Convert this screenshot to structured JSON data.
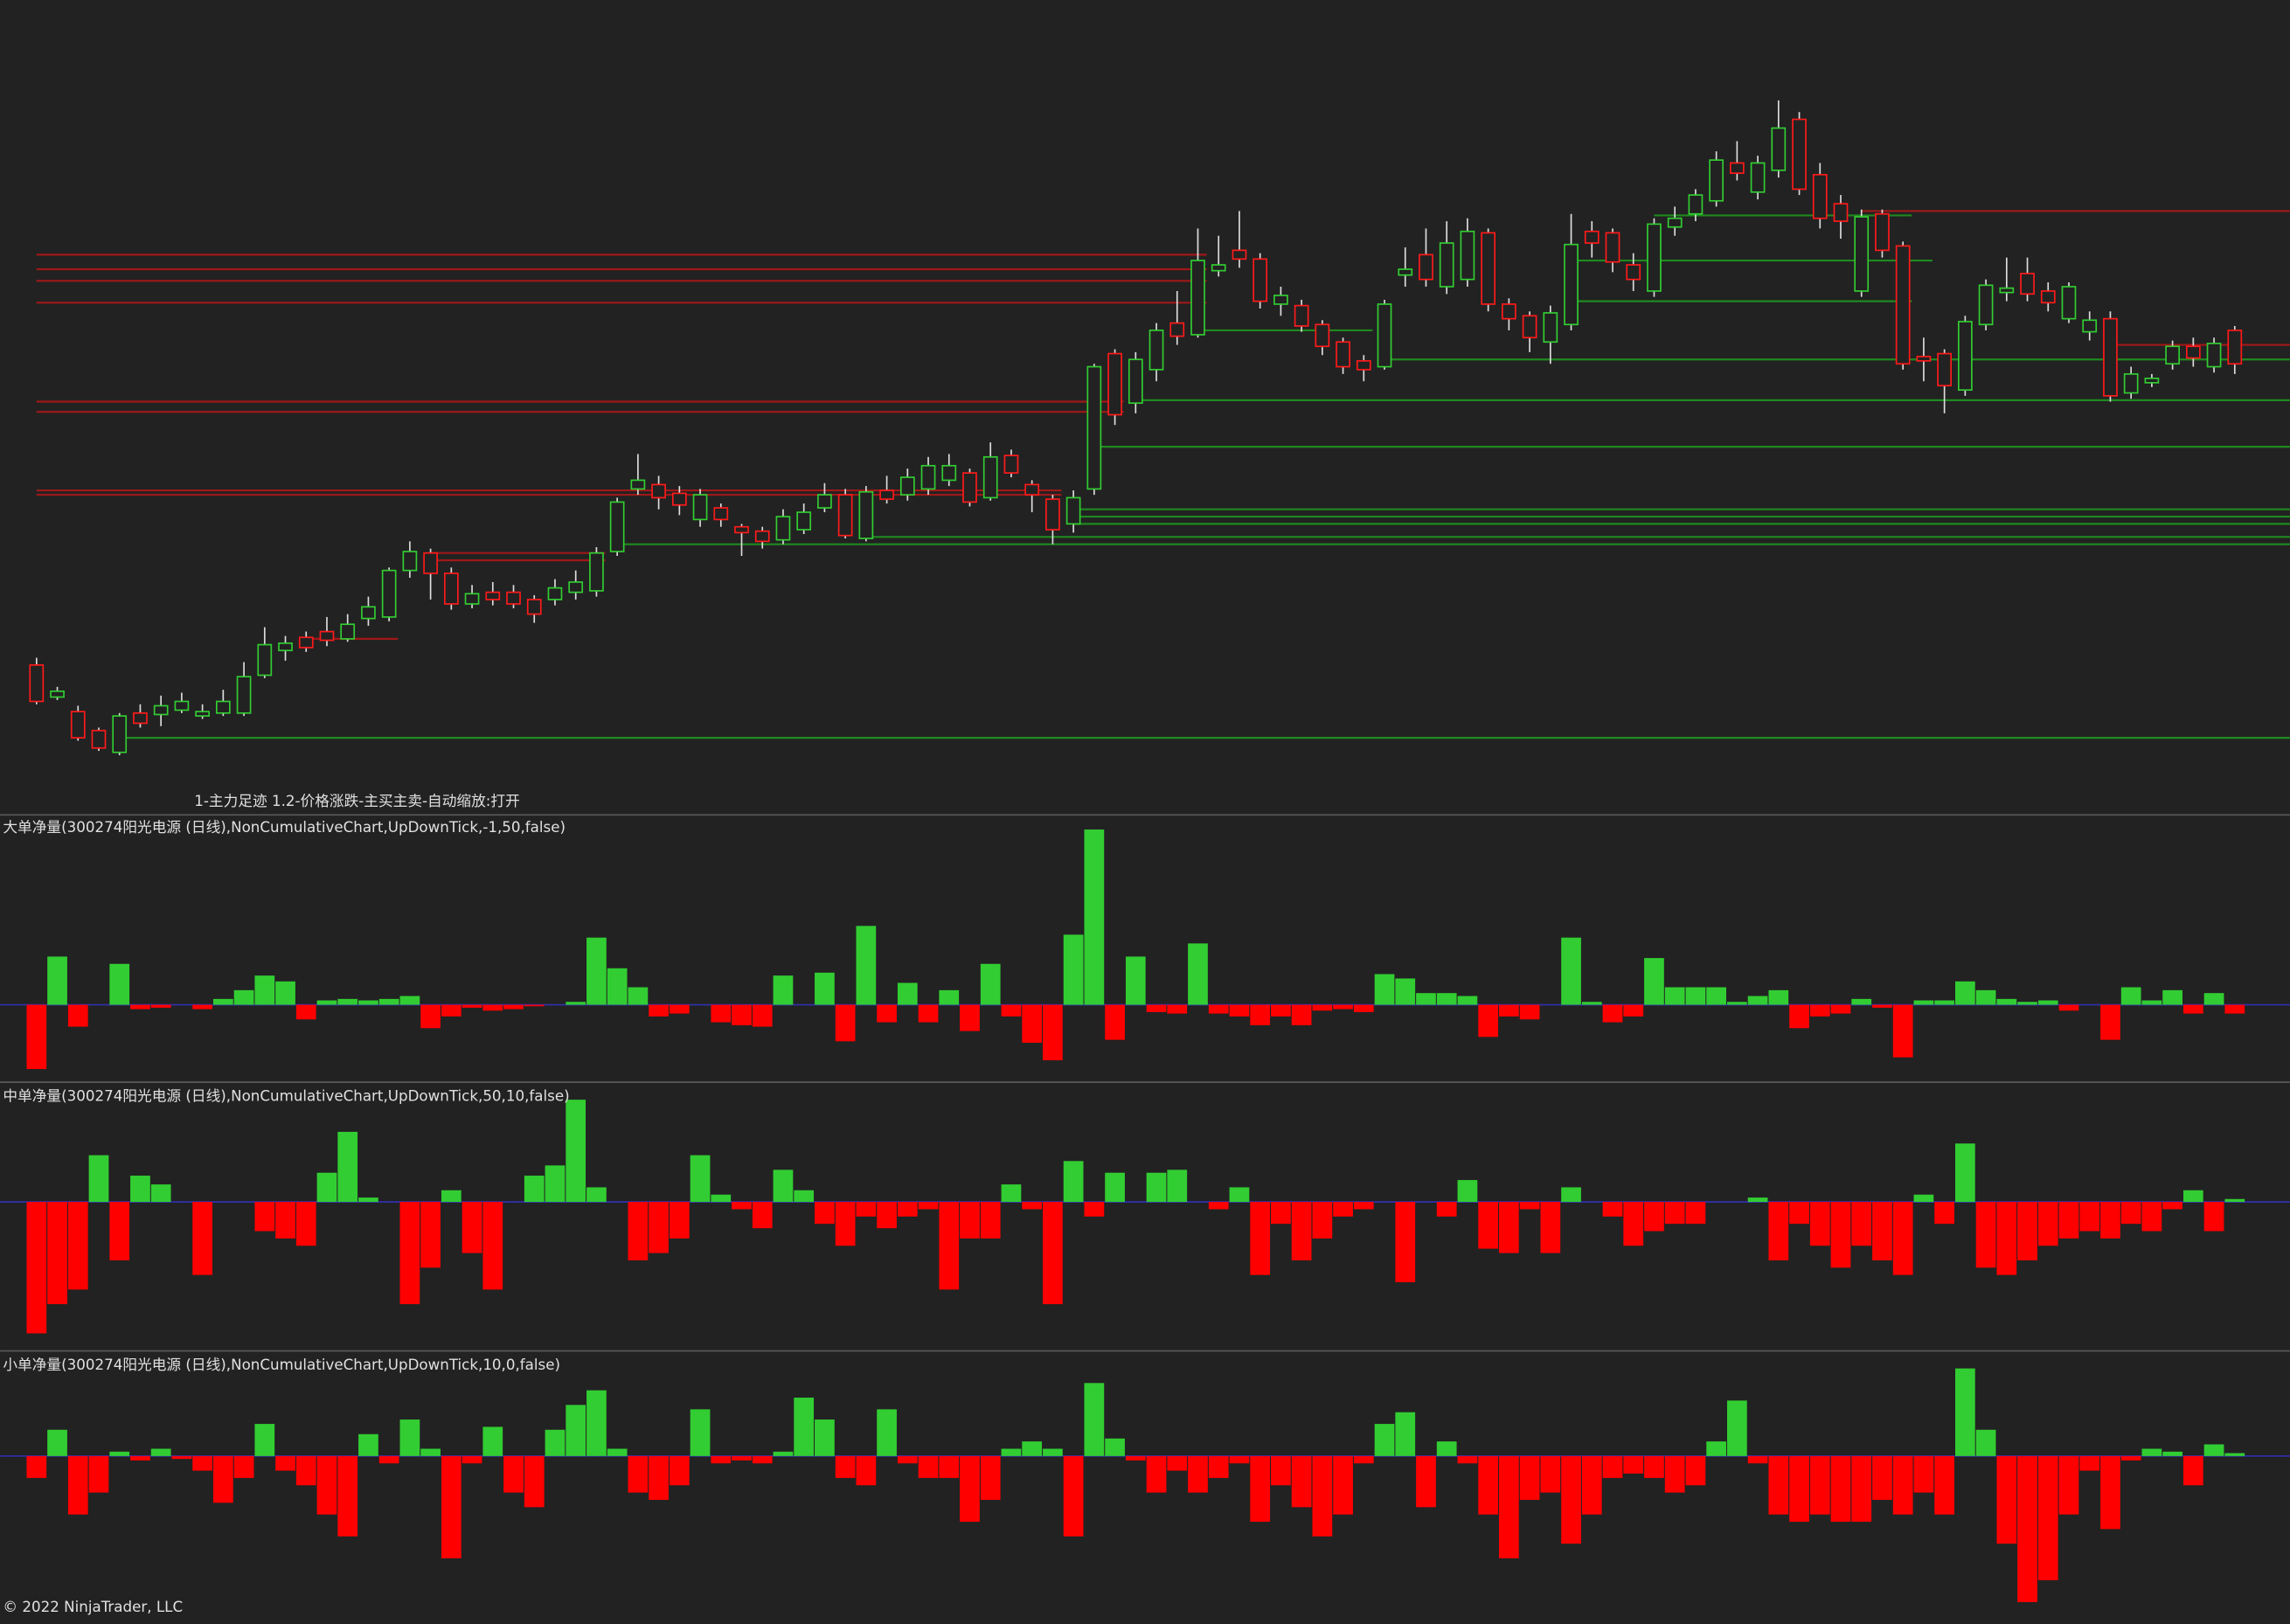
{
  "chart_data": [
    {
      "type": "candlestick",
      "title": "1-主力足迹 1.2-价格涨跌-主买主卖-自动缩放:打开",
      "up_color": "#32cd32",
      "down_color": "#ff1a1a",
      "wick_color": "#dddddd",
      "ylim": [
        2,
        560
      ],
      "open": [
        105,
        83,
        73,
        60,
        45,
        72,
        71,
        74,
        70,
        72,
        72,
        98,
        115,
        124,
        128,
        123,
        137,
        138,
        170,
        182,
        168,
        147,
        155,
        155,
        150,
        150,
        155,
        156,
        183,
        226,
        229,
        223,
        205,
        213,
        200,
        197,
        191,
        198,
        213,
        222,
        192,
        225,
        222,
        226,
        232,
        237,
        220,
        249,
        229,
        219,
        202,
        226,
        319,
        285,
        308,
        340,
        332,
        376,
        390,
        384,
        353,
        352,
        339,
        327,
        314,
        310,
        373,
        387,
        365,
        370,
        402,
        353,
        345,
        327,
        339,
        403,
        402,
        380,
        362,
        406,
        415,
        424,
        450,
        430,
        445,
        480,
        442,
        422,
        362,
        415,
        393,
        317,
        319,
        294,
        339,
        361,
        374,
        362,
        343,
        334,
        343,
        292,
        299,
        312,
        324,
        310,
        335
      ],
      "high": [
        110,
        90,
        77,
        62,
        72,
        78,
        84,
        86,
        78,
        88,
        107,
        131,
        125,
        128,
        138,
        140,
        152,
        172,
        190,
        185,
        172,
        160,
        162,
        160,
        153,
        164,
        170,
        186,
        220,
        250,
        235,
        228,
        226,
        216,
        202,
        200,
        212,
        216,
        230,
        226,
        228,
        235,
        240,
        248,
        250,
        240,
        258,
        253,
        232,
        222,
        225,
        312,
        322,
        320,
        340,
        362,
        405,
        400,
        417,
        388,
        365,
        356,
        342,
        330,
        318,
        356,
        392,
        405,
        410,
        412,
        405,
        357,
        348,
        352,
        415,
        410,
        405,
        388,
        412,
        420,
        432,
        458,
        465,
        455,
        493,
        485,
        450,
        428,
        418,
        418,
        396,
        330,
        322,
        345,
        370,
        385,
        385,
        368,
        368,
        348,
        348,
        310,
        305,
        328,
        330,
        330,
        338
      ],
      "low": [
        78,
        81,
        53,
        46,
        43,
        62,
        63,
        72,
        68,
        70,
        70,
        96,
        108,
        114,
        118,
        121,
        132,
        135,
        165,
        150,
        143,
        144,
        146,
        144,
        134,
        146,
        150,
        152,
        180,
        222,
        212,
        208,
        200,
        200,
        180,
        185,
        188,
        195,
        210,
        192,
        190,
        216,
        218,
        222,
        228,
        214,
        218,
        234,
        210,
        188,
        196,
        222,
        270,
        278,
        300,
        325,
        330,
        372,
        378,
        350,
        345,
        334,
        318,
        305,
        300,
        308,
        365,
        365,
        360,
        365,
        348,
        335,
        320,
        312,
        335,
        385,
        375,
        362,
        358,
        400,
        410,
        420,
        438,
        425,
        440,
        428,
        405,
        398,
        358,
        385,
        308,
        300,
        278,
        290,
        335,
        355,
        355,
        348,
        340,
        328,
        286,
        288,
        296,
        308,
        310,
        306,
        305
      ],
      "close": [
        80,
        87,
        55,
        48,
        70,
        65,
        77,
        80,
        73,
        80,
        97,
        119,
        120,
        117,
        122,
        133,
        145,
        170,
        183,
        168,
        147,
        154,
        150,
        147,
        140,
        158,
        162,
        182,
        217,
        232,
        220,
        215,
        222,
        205,
        196,
        190,
        207,
        210,
        222,
        194,
        224,
        219,
        234,
        242,
        242,
        217,
        248,
        237,
        222,
        198,
        220,
        310,
        277,
        315,
        335,
        331,
        383,
        380,
        384,
        355,
        359,
        338,
        324,
        310,
        308,
        353,
        377,
        370,
        395,
        403,
        353,
        343,
        330,
        347,
        394,
        395,
        382,
        370,
        408,
        412,
        428,
        452,
        443,
        450,
        474,
        432,
        412,
        410,
        413,
        390,
        312,
        314,
        297,
        341,
        366,
        364,
        360,
        354,
        365,
        342,
        290,
        305,
        302,
        324,
        316,
        326,
        312
      ],
      "levels": [
        {
          "value": 387,
          "from": 0,
          "to": 56,
          "color": "#a01818"
        },
        {
          "value": 377,
          "from": 0,
          "to": 56,
          "color": "#a01818"
        },
        {
          "value": 369,
          "from": 0,
          "to": 56,
          "color": "#a01818"
        },
        {
          "value": 354,
          "from": 0,
          "to": 56,
          "color": "#a01818"
        },
        {
          "value": 286,
          "from": 0,
          "to": 52,
          "color": "#a01818"
        },
        {
          "value": 279,
          "from": 0,
          "to": 52,
          "color": "#a01818"
        },
        {
          "value": 225,
          "from": 0,
          "to": 49,
          "color": "#a01818"
        },
        {
          "value": 222,
          "from": 0,
          "to": 49,
          "color": "#a01818"
        },
        {
          "value": 182,
          "from": 19,
          "to": 27,
          "color": "#a01818"
        },
        {
          "value": 177,
          "from": 19,
          "to": 27,
          "color": "#a01818"
        },
        {
          "value": 123,
          "from": 13,
          "to": 17,
          "color": "#a01818"
        },
        {
          "value": 417,
          "from": 88,
          "to": 106,
          "color": "#a01818"
        },
        {
          "value": 325,
          "from": 100,
          "to": 106,
          "color": "#a01818"
        },
        {
          "value": 55,
          "from": 4,
          "to": 106,
          "color": "#1f8a1f"
        },
        {
          "value": 188,
          "from": 28,
          "to": 106,
          "color": "#1f8a1f"
        },
        {
          "value": 193,
          "from": 40,
          "to": 106,
          "color": "#1f8a1f"
        },
        {
          "value": 202,
          "from": 50,
          "to": 106,
          "color": "#1f8a1f"
        },
        {
          "value": 207,
          "from": 50,
          "to": 106,
          "color": "#1f8a1f"
        },
        {
          "value": 212,
          "from": 50,
          "to": 106,
          "color": "#1f8a1f"
        },
        {
          "value": 255,
          "from": 51,
          "to": 106,
          "color": "#1f8a1f"
        },
        {
          "value": 287,
          "from": 53,
          "to": 106,
          "color": "#1f8a1f"
        },
        {
          "value": 315,
          "from": 65,
          "to": 106,
          "color": "#1f8a1f"
        },
        {
          "value": 335,
          "from": 56,
          "to": 64,
          "color": "#1f8a1f"
        },
        {
          "value": 414,
          "from": 78,
          "to": 90,
          "color": "#1f8a1f"
        },
        {
          "value": 383,
          "from": 74,
          "to": 91,
          "color": "#1f8a1f"
        },
        {
          "value": 355,
          "from": 74,
          "to": 90,
          "color": "#1f8a1f"
        }
      ]
    },
    {
      "type": "bar",
      "title": "大单净量(300274阳光电源 (日线),NonCumulativeChart,UpDownTick,-1,50,false)",
      "up_color": "#32cd32",
      "down_color": "#ff0000",
      "zero_color": "#3030b0",
      "ylim": [
        -53,
        130
      ],
      "values": [
        -44,
        33,
        -15,
        0,
        28,
        -3,
        -2,
        0,
        -3,
        4,
        10,
        20,
        16,
        -10,
        3,
        4,
        3,
        4,
        6,
        -16,
        -8,
        -2,
        -4,
        -3,
        -1,
        0,
        2,
        46,
        25,
        12,
        -8,
        -6,
        0,
        -12,
        -14,
        -15,
        20,
        0,
        22,
        -25,
        54,
        -12,
        15,
        -12,
        10,
        -18,
        28,
        -8,
        -26,
        -38,
        48,
        120,
        -24,
        33,
        -5,
        -6,
        42,
        -6,
        -8,
        -14,
        -8,
        -14,
        -4,
        -3,
        -5,
        21,
        18,
        8,
        8,
        6,
        -22,
        -8,
        -10,
        0,
        46,
        2,
        -12,
        -8,
        32,
        12,
        12,
        12,
        2,
        6,
        10,
        -16,
        -8,
        -6,
        4,
        -2,
        -36,
        3,
        3,
        16,
        10,
        4,
        2,
        3,
        -4,
        0,
        -24,
        12,
        3,
        10,
        -6,
        8,
        -6
      ]
    },
    {
      "type": "bar",
      "title": "中单净量(300274阳光电源 (日线),NonCumulativeChart,UpDownTick,50,10,false)",
      "up_color": "#32cd32",
      "down_color": "#ff0000",
      "zero_color": "#3030b0",
      "ylim": [
        -102,
        82
      ],
      "values": [
        -90,
        -70,
        -60,
        32,
        -40,
        18,
        12,
        0,
        -50,
        0,
        0,
        -20,
        -25,
        -30,
        20,
        48,
        3,
        0,
        -70,
        -45,
        8,
        -35,
        -60,
        0,
        18,
        25,
        70,
        10,
        0,
        -40,
        -35,
        -25,
        32,
        5,
        -5,
        -18,
        22,
        8,
        -15,
        -30,
        -10,
        -18,
        -10,
        -5,
        -60,
        -25,
        -25,
        12,
        -5,
        -70,
        28,
        -10,
        20,
        0,
        20,
        22,
        0,
        -5,
        10,
        -50,
        -15,
        -40,
        -25,
        -10,
        -5,
        0,
        -55,
        0,
        -10,
        15,
        -32,
        -35,
        -5,
        -35,
        10,
        0,
        -10,
        -30,
        -20,
        -15,
        -15,
        0,
        0,
        3,
        -40,
        -15,
        -30,
        -45,
        -30,
        -40,
        -50,
        5,
        -15,
        40,
        -45,
        -50,
        -40,
        -30,
        -25,
        -20,
        -25,
        -15,
        -20,
        -5,
        8,
        -20,
        2
      ]
    },
    {
      "type": "bar",
      "title": "小单净量(300274阳光电源 (日线),NonCumulativeChart,UpDownTick,10,0,false)",
      "up_color": "#32cd32",
      "down_color": "#ff0000",
      "zero_color": "#3030b0",
      "ylim": [
        -115,
        72
      ],
      "values": [
        -15,
        18,
        -40,
        -25,
        3,
        -3,
        5,
        -2,
        -10,
        -32,
        -15,
        22,
        -10,
        -20,
        -40,
        -55,
        15,
        -5,
        25,
        5,
        -70,
        -5,
        20,
        -25,
        -35,
        18,
        35,
        45,
        5,
        -25,
        -30,
        -20,
        32,
        -5,
        -3,
        -5,
        3,
        40,
        25,
        -15,
        -20,
        32,
        -5,
        -15,
        -15,
        -45,
        -30,
        5,
        10,
        5,
        -55,
        50,
        12,
        -3,
        -25,
        -10,
        -25,
        -15,
        -5,
        -45,
        -20,
        -35,
        -55,
        -40,
        -5,
        22,
        30,
        -35,
        10,
        -5,
        -40,
        -70,
        -30,
        -25,
        -60,
        -40,
        -15,
        -12,
        -15,
        -25,
        -20,
        10,
        38,
        -5,
        -40,
        -45,
        -40,
        -45,
        -45,
        -30,
        -40,
        -25,
        -40,
        60,
        18,
        -60,
        -100,
        -85,
        -40,
        -10,
        -50,
        -3,
        5,
        3,
        -20,
        8,
        2
      ]
    }
  ],
  "footer": "© 2022 NinjaTrader, LLC"
}
